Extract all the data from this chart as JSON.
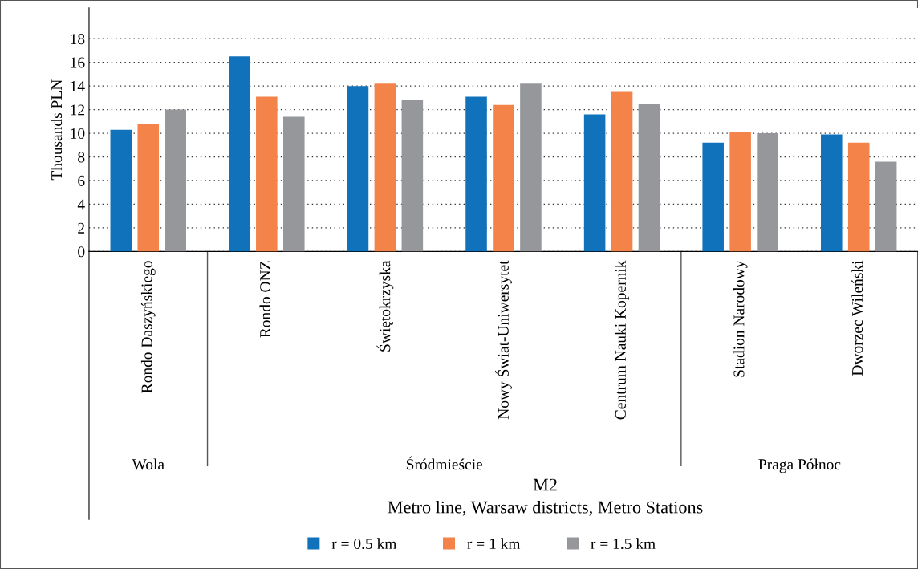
{
  "chart_data": {
    "type": "bar",
    "xlabel": "Metro line, Warsaw districts, Metro Stations",
    "ylabel": "Thousands PLN",
    "categories": [
      "Rondo Daszyńskiego",
      "Rondo ONZ",
      "Świętokrzyska",
      "Nowy Świat-Uniwersytet",
      "Centrum Nauki Kopernik",
      "Stadion Narodowy",
      "Dworzec Wileński"
    ],
    "series": [
      {
        "name": "r = 0.5 km",
        "color": "#1072bb",
        "values": [
          10.3,
          16.5,
          14.0,
          13.1,
          11.6,
          9.2,
          9.9
        ]
      },
      {
        "name": "r = 1 km",
        "color": "#f4834a",
        "values": [
          10.8,
          13.1,
          14.2,
          12.4,
          13.5,
          10.1,
          9.2
        ]
      },
      {
        "name": "r = 1.5 km",
        "color": "#96979b",
        "values": [
          12.0,
          11.4,
          12.8,
          14.2,
          12.5,
          10.0,
          7.6
        ]
      }
    ],
    "annotations": [
      "Wola",
      "Śródmieście",
      "Praga Północ",
      "M2"
    ],
    "ylim": [
      0,
      20.6
    ],
    "yticks": [
      0,
      2,
      4,
      6,
      8,
      10,
      12,
      14,
      16,
      18
    ],
    "grid": "y",
    "legend": "bottom"
  }
}
